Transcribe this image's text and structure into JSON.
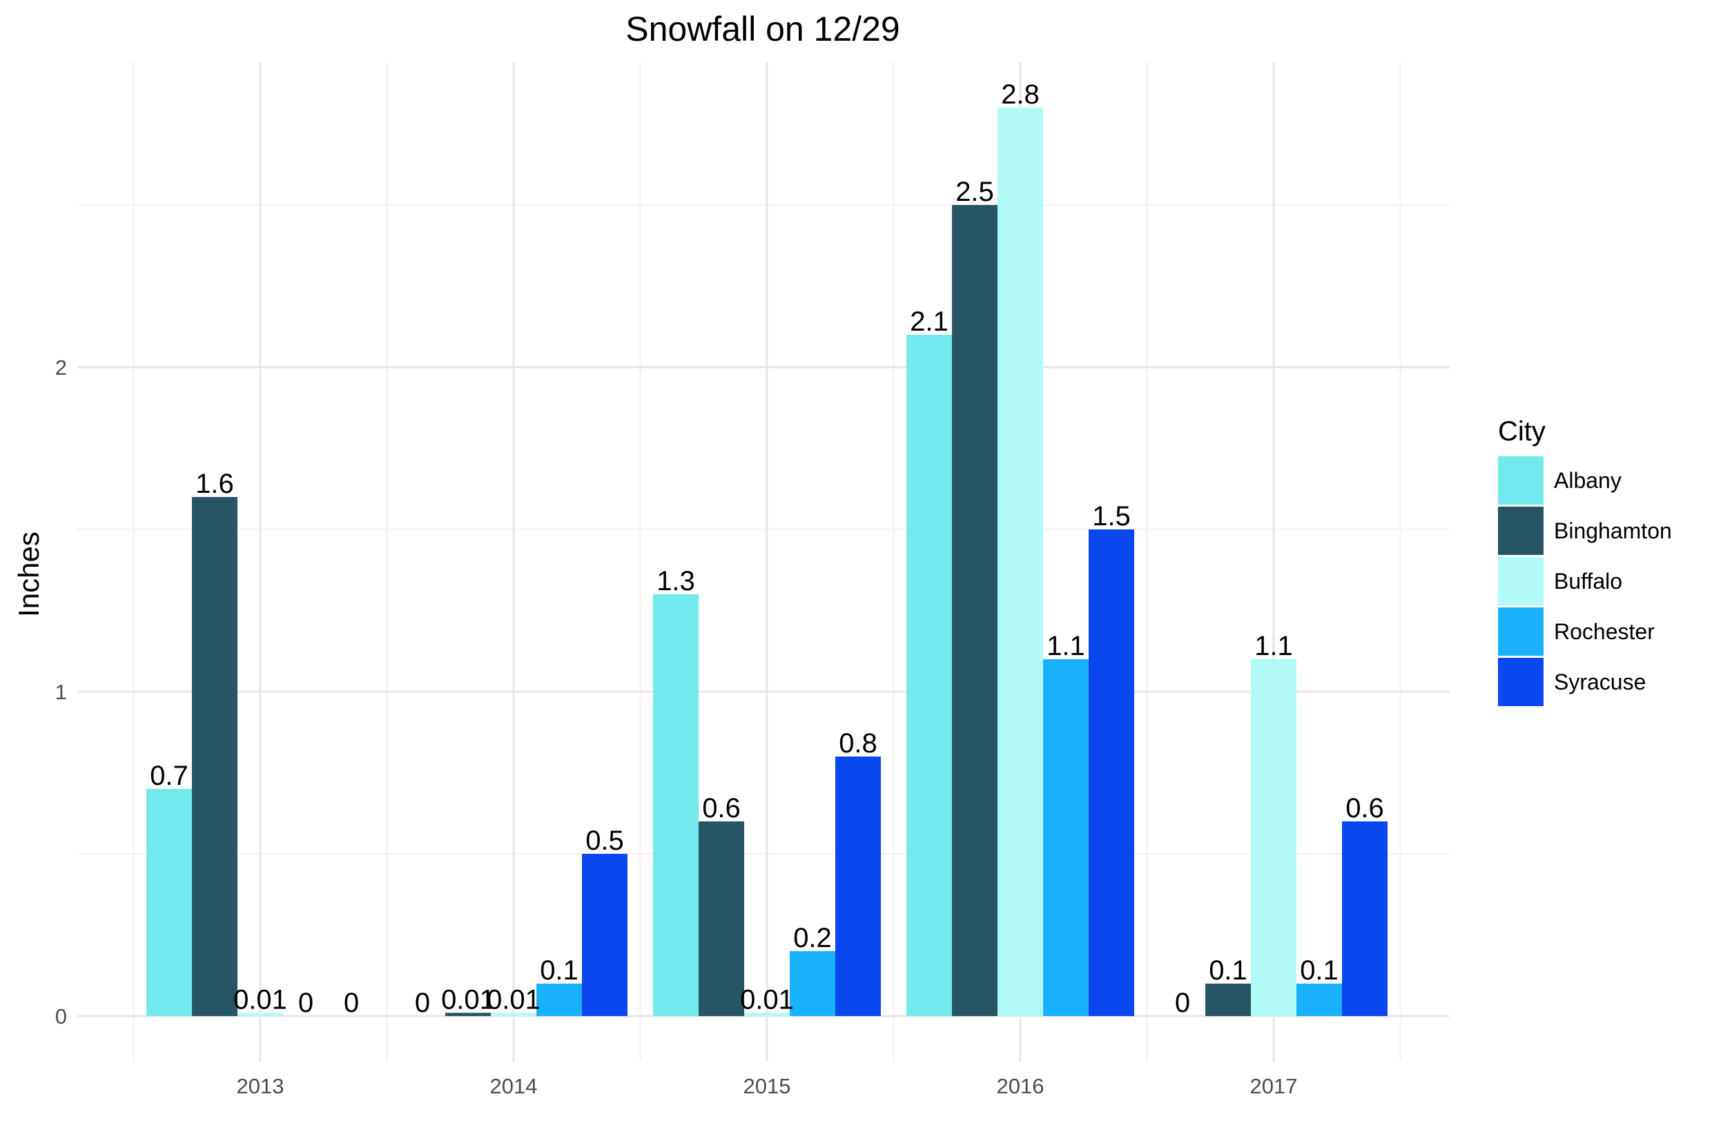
{
  "chart_data": {
    "type": "bar",
    "title": "Snowfall on 12/29",
    "xlabel": "",
    "ylabel": "Inches",
    "categories": [
      "2013",
      "2014",
      "2015",
      "2016",
      "2017"
    ],
    "ylim": [
      -0.15,
      2.95
    ],
    "yticks": [
      0,
      1,
      2
    ],
    "grid": true,
    "legend": {
      "title": "City",
      "position": "right"
    },
    "series": [
      {
        "name": "Albany",
        "color": "#72E9ED",
        "values": [
          0.7,
          0,
          1.3,
          2.1,
          0
        ],
        "labels": [
          "0.7",
          "0",
          "1.3",
          "2.1",
          "0"
        ]
      },
      {
        "name": "Binghamton",
        "color": "#265663",
        "values": [
          1.6,
          0.01,
          0.6,
          2.5,
          0.1
        ],
        "labels": [
          "1.6",
          "0.01",
          "0.6",
          "2.5",
          "0.1"
        ]
      },
      {
        "name": "Buffalo",
        "color": "#B2FAF6",
        "values": [
          0.01,
          0.01,
          0.01,
          2.8,
          1.1
        ],
        "labels": [
          "0.01",
          "0.01",
          "0.01",
          "2.8",
          "1.1"
        ]
      },
      {
        "name": "Rochester",
        "color": "#1AB1FC",
        "values": [
          0,
          0.1,
          0.2,
          1.1,
          0.1
        ],
        "labels": [
          "0",
          "0.1",
          "0.2",
          "1.1",
          "0.1"
        ]
      },
      {
        "name": "Syracuse",
        "color": "#0A47EE",
        "values": [
          0,
          0.5,
          0.8,
          1.5,
          0.6
        ],
        "labels": [
          "0",
          "0.5",
          "0.8",
          "1.5",
          "0.6"
        ]
      }
    ]
  }
}
